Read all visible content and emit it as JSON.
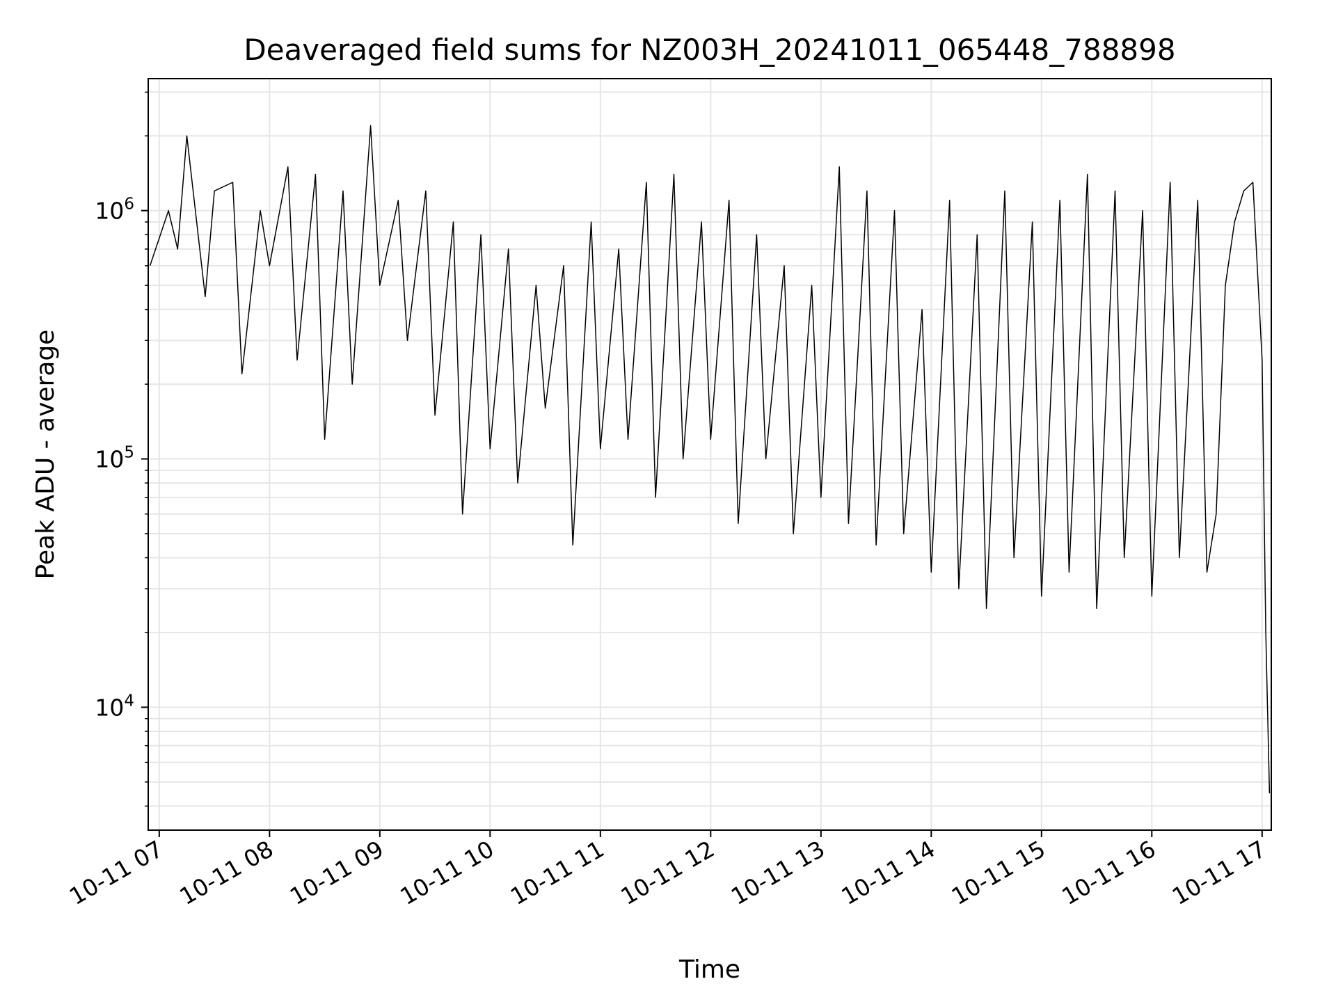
{
  "chart_data": {
    "type": "line",
    "title": "Deaveraged field sums for NZ003H_20241011_065448_788898",
    "xlabel": "Time",
    "ylabel": "Peak ADU - average",
    "xlim": [
      "2024-10-11 06:54",
      "2024-10-11 17:05"
    ],
    "ylim": [
      3200,
      3400000
    ],
    "yscale": "log",
    "grid": true,
    "line_color": "#000000",
    "grid_color": "#e6e6e6",
    "x_ticks": [
      {
        "time": "2024-10-11 07:00",
        "label": "10-11 07"
      },
      {
        "time": "2024-10-11 08:00",
        "label": "10-11 08"
      },
      {
        "time": "2024-10-11 09:00",
        "label": "10-11 09"
      },
      {
        "time": "2024-10-11 10:00",
        "label": "10-11 10"
      },
      {
        "time": "2024-10-11 11:00",
        "label": "10-11 11"
      },
      {
        "time": "2024-10-11 12:00",
        "label": "10-11 12"
      },
      {
        "time": "2024-10-11 13:00",
        "label": "10-11 13"
      },
      {
        "time": "2024-10-11 14:00",
        "label": "10-11 14"
      },
      {
        "time": "2024-10-11 15:00",
        "label": "10-11 15"
      },
      {
        "time": "2024-10-11 16:00",
        "label": "10-11 16"
      },
      {
        "time": "2024-10-11 17:00",
        "label": "10-11 17"
      }
    ],
    "y_ticks": [
      {
        "value": 10000,
        "base": "10",
        "exp": "4"
      },
      {
        "value": 100000,
        "base": "10",
        "exp": "5"
      },
      {
        "value": 1000000,
        "base": "10",
        "exp": "6"
      }
    ],
    "series": [
      {
        "x": [
          "2024-10-11 06:55",
          "2024-10-11 07:05",
          "2024-10-11 07:10",
          "2024-10-11 07:15",
          "2024-10-11 07:25",
          "2024-10-11 07:30",
          "2024-10-11 07:40",
          "2024-10-11 07:45",
          "2024-10-11 07:55",
          "2024-10-11 08:00",
          "2024-10-11 08:10",
          "2024-10-11 08:15",
          "2024-10-11 08:25",
          "2024-10-11 08:30",
          "2024-10-11 08:40",
          "2024-10-11 08:45",
          "2024-10-11 08:55",
          "2024-10-11 09:00",
          "2024-10-11 09:10",
          "2024-10-11 09:15",
          "2024-10-11 09:25",
          "2024-10-11 09:30",
          "2024-10-11 09:40",
          "2024-10-11 09:45",
          "2024-10-11 09:55",
          "2024-10-11 10:00",
          "2024-10-11 10:10",
          "2024-10-11 10:15",
          "2024-10-11 10:25",
          "2024-10-11 10:30",
          "2024-10-11 10:40",
          "2024-10-11 10:45",
          "2024-10-11 10:55",
          "2024-10-11 11:00",
          "2024-10-11 11:10",
          "2024-10-11 11:15",
          "2024-10-11 11:25",
          "2024-10-11 11:30",
          "2024-10-11 11:40",
          "2024-10-11 11:45",
          "2024-10-11 11:55",
          "2024-10-11 12:00",
          "2024-10-11 12:10",
          "2024-10-11 12:15",
          "2024-10-11 12:25",
          "2024-10-11 12:30",
          "2024-10-11 12:40",
          "2024-10-11 12:45",
          "2024-10-11 12:55",
          "2024-10-11 13:00",
          "2024-10-11 13:10",
          "2024-10-11 13:15",
          "2024-10-11 13:25",
          "2024-10-11 13:30",
          "2024-10-11 13:40",
          "2024-10-11 13:45",
          "2024-10-11 13:55",
          "2024-10-11 14:00",
          "2024-10-11 14:10",
          "2024-10-11 14:15",
          "2024-10-11 14:25",
          "2024-10-11 14:30",
          "2024-10-11 14:40",
          "2024-10-11 14:45",
          "2024-10-11 14:55",
          "2024-10-11 15:00",
          "2024-10-11 15:10",
          "2024-10-11 15:15",
          "2024-10-11 15:25",
          "2024-10-11 15:30",
          "2024-10-11 15:40",
          "2024-10-11 15:45",
          "2024-10-11 15:55",
          "2024-10-11 16:00",
          "2024-10-11 16:10",
          "2024-10-11 16:15",
          "2024-10-11 16:25",
          "2024-10-11 16:30",
          "2024-10-11 16:35",
          "2024-10-11 16:40",
          "2024-10-11 16:45",
          "2024-10-11 16:50",
          "2024-10-11 16:55",
          "2024-10-11 17:00",
          "2024-10-11 17:02",
          "2024-10-11 17:04"
        ],
        "y": [
          600000,
          1000000,
          700000,
          2000000,
          450000,
          1200000,
          1300000,
          220000,
          1000000,
          600000,
          1500000,
          250000,
          1400000,
          120000,
          1200000,
          200000,
          2200000,
          500000,
          1100000,
          300000,
          1200000,
          150000,
          900000,
          60000,
          800000,
          110000,
          700000,
          80000,
          500000,
          160000,
          600000,
          45000,
          900000,
          110000,
          700000,
          120000,
          1300000,
          70000,
          1400000,
          100000,
          900000,
          120000,
          1100000,
          55000,
          800000,
          100000,
          600000,
          50000,
          500000,
          70000,
          1500000,
          55000,
          1200000,
          45000,
          1000000,
          50000,
          400000,
          35000,
          1100000,
          30000,
          800000,
          25000,
          1200000,
          40000,
          900000,
          28000,
          1100000,
          35000,
          1400000,
          25000,
          1200000,
          40000,
          1000000,
          28000,
          1300000,
          40000,
          1100000,
          35000,
          60000,
          500000,
          900000,
          1200000,
          1300000,
          250000,
          20000,
          4500
        ]
      }
    ]
  }
}
